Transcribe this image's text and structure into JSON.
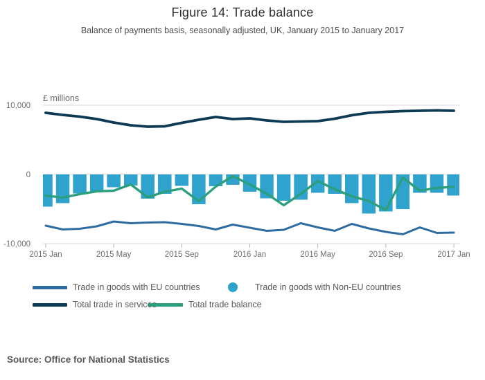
{
  "header": {
    "title": "Figure 14: Trade balance",
    "subtitle": "Balance of payments basis, seasonally adjusted, UK, January 2015 to January 2017"
  },
  "source": {
    "text": "Source: Office for National Statistics"
  },
  "legend": {
    "items": [
      {
        "label": "Trade in goods with EU countries",
        "marker": "line",
        "color": "#2d6ba0"
      },
      {
        "label": "Trade in goods with Non-EU countries",
        "marker": "circle",
        "color": "#2fa3cd"
      },
      {
        "label": "Total trade in services",
        "marker": "line",
        "color": "#0e3a54"
      },
      {
        "label": "Total trade balance",
        "marker": "line",
        "color": "#2b9f7d"
      }
    ]
  },
  "chart_data": {
    "type": "combo-bar-line",
    "title": "Figure 14: Trade balance",
    "unit_label": "£ millions",
    "ylabel": "£ millions",
    "ylim": [
      -10000,
      10000
    ],
    "grid": "horizontal-only",
    "x": [
      "2015 Jan",
      "2015 Feb",
      "2015 Mar",
      "2015 Apr",
      "2015 May",
      "2015 Jun",
      "2015 Jul",
      "2015 Aug",
      "2015 Sep",
      "2015 Oct",
      "2015 Nov",
      "2015 Dec",
      "2016 Jan",
      "2016 Feb",
      "2016 Mar",
      "2016 Apr",
      "2016 May",
      "2016 Jun",
      "2016 Jul",
      "2016 Aug",
      "2016 Sep",
      "2016 Oct",
      "2016 Nov",
      "2016 Dec",
      "2017 Jan"
    ],
    "x_tick_indices": [
      0,
      4,
      8,
      12,
      16,
      20,
      24
    ],
    "x_tick_labels": [
      "2015 Jan",
      "2015 May",
      "2015 Sep",
      "2016 Jan",
      "2016 May",
      "2016 Sep",
      "2017 Jan"
    ],
    "y_ticks": [
      {
        "value": 10000,
        "label": "10,000"
      },
      {
        "value": 0,
        "label": "0"
      },
      {
        "value": -10000,
        "label": "-10,000"
      }
    ],
    "series": [
      {
        "id": "non-eu-goods",
        "name": "Trade in goods with Non-EU countries",
        "type": "bar",
        "color": "#2fa3cd",
        "values": [
          -4650,
          -4150,
          -2750,
          -2550,
          -1850,
          -1600,
          -3500,
          -2800,
          -1650,
          -4300,
          -1700,
          -1500,
          -2500,
          -3450,
          -3800,
          -3650,
          -2650,
          -2800,
          -4150,
          -5650,
          -5350,
          -5000,
          -2650,
          -2650,
          -3050
        ]
      },
      {
        "id": "eu-goods",
        "name": "Trade in goods with EU countries",
        "type": "line",
        "color": "#2d6ba0",
        "values": [
          -7400,
          -7950,
          -7850,
          -7500,
          -6800,
          -7050,
          -6950,
          -6900,
          -7150,
          -7450,
          -7950,
          -7250,
          -7700,
          -8150,
          -8000,
          -7050,
          -7650,
          -8150,
          -7150,
          -7800,
          -8300,
          -8650,
          -7650,
          -8450,
          -8400
        ]
      },
      {
        "id": "services",
        "name": "Total trade in services",
        "type": "line",
        "color": "#0e3a54",
        "values": [
          8900,
          8600,
          8350,
          8000,
          7500,
          7100,
          6900,
          6950,
          7450,
          7900,
          8300,
          8000,
          8100,
          7800,
          7600,
          7650,
          7700,
          8050,
          8550,
          8900,
          9050,
          9150,
          9200,
          9250,
          9200
        ]
      },
      {
        "id": "total-balance",
        "name": "Total trade balance",
        "type": "line",
        "color": "#2b9f7d",
        "values": [
          -3050,
          -3350,
          -2850,
          -2450,
          -2350,
          -1450,
          -3300,
          -2500,
          -2050,
          -3850,
          -1750,
          -250,
          -1450,
          -2800,
          -4450,
          -2800,
          -950,
          -2150,
          -3150,
          -3850,
          -5150,
          -450,
          -2350,
          -1950,
          -1800
        ]
      }
    ]
  }
}
